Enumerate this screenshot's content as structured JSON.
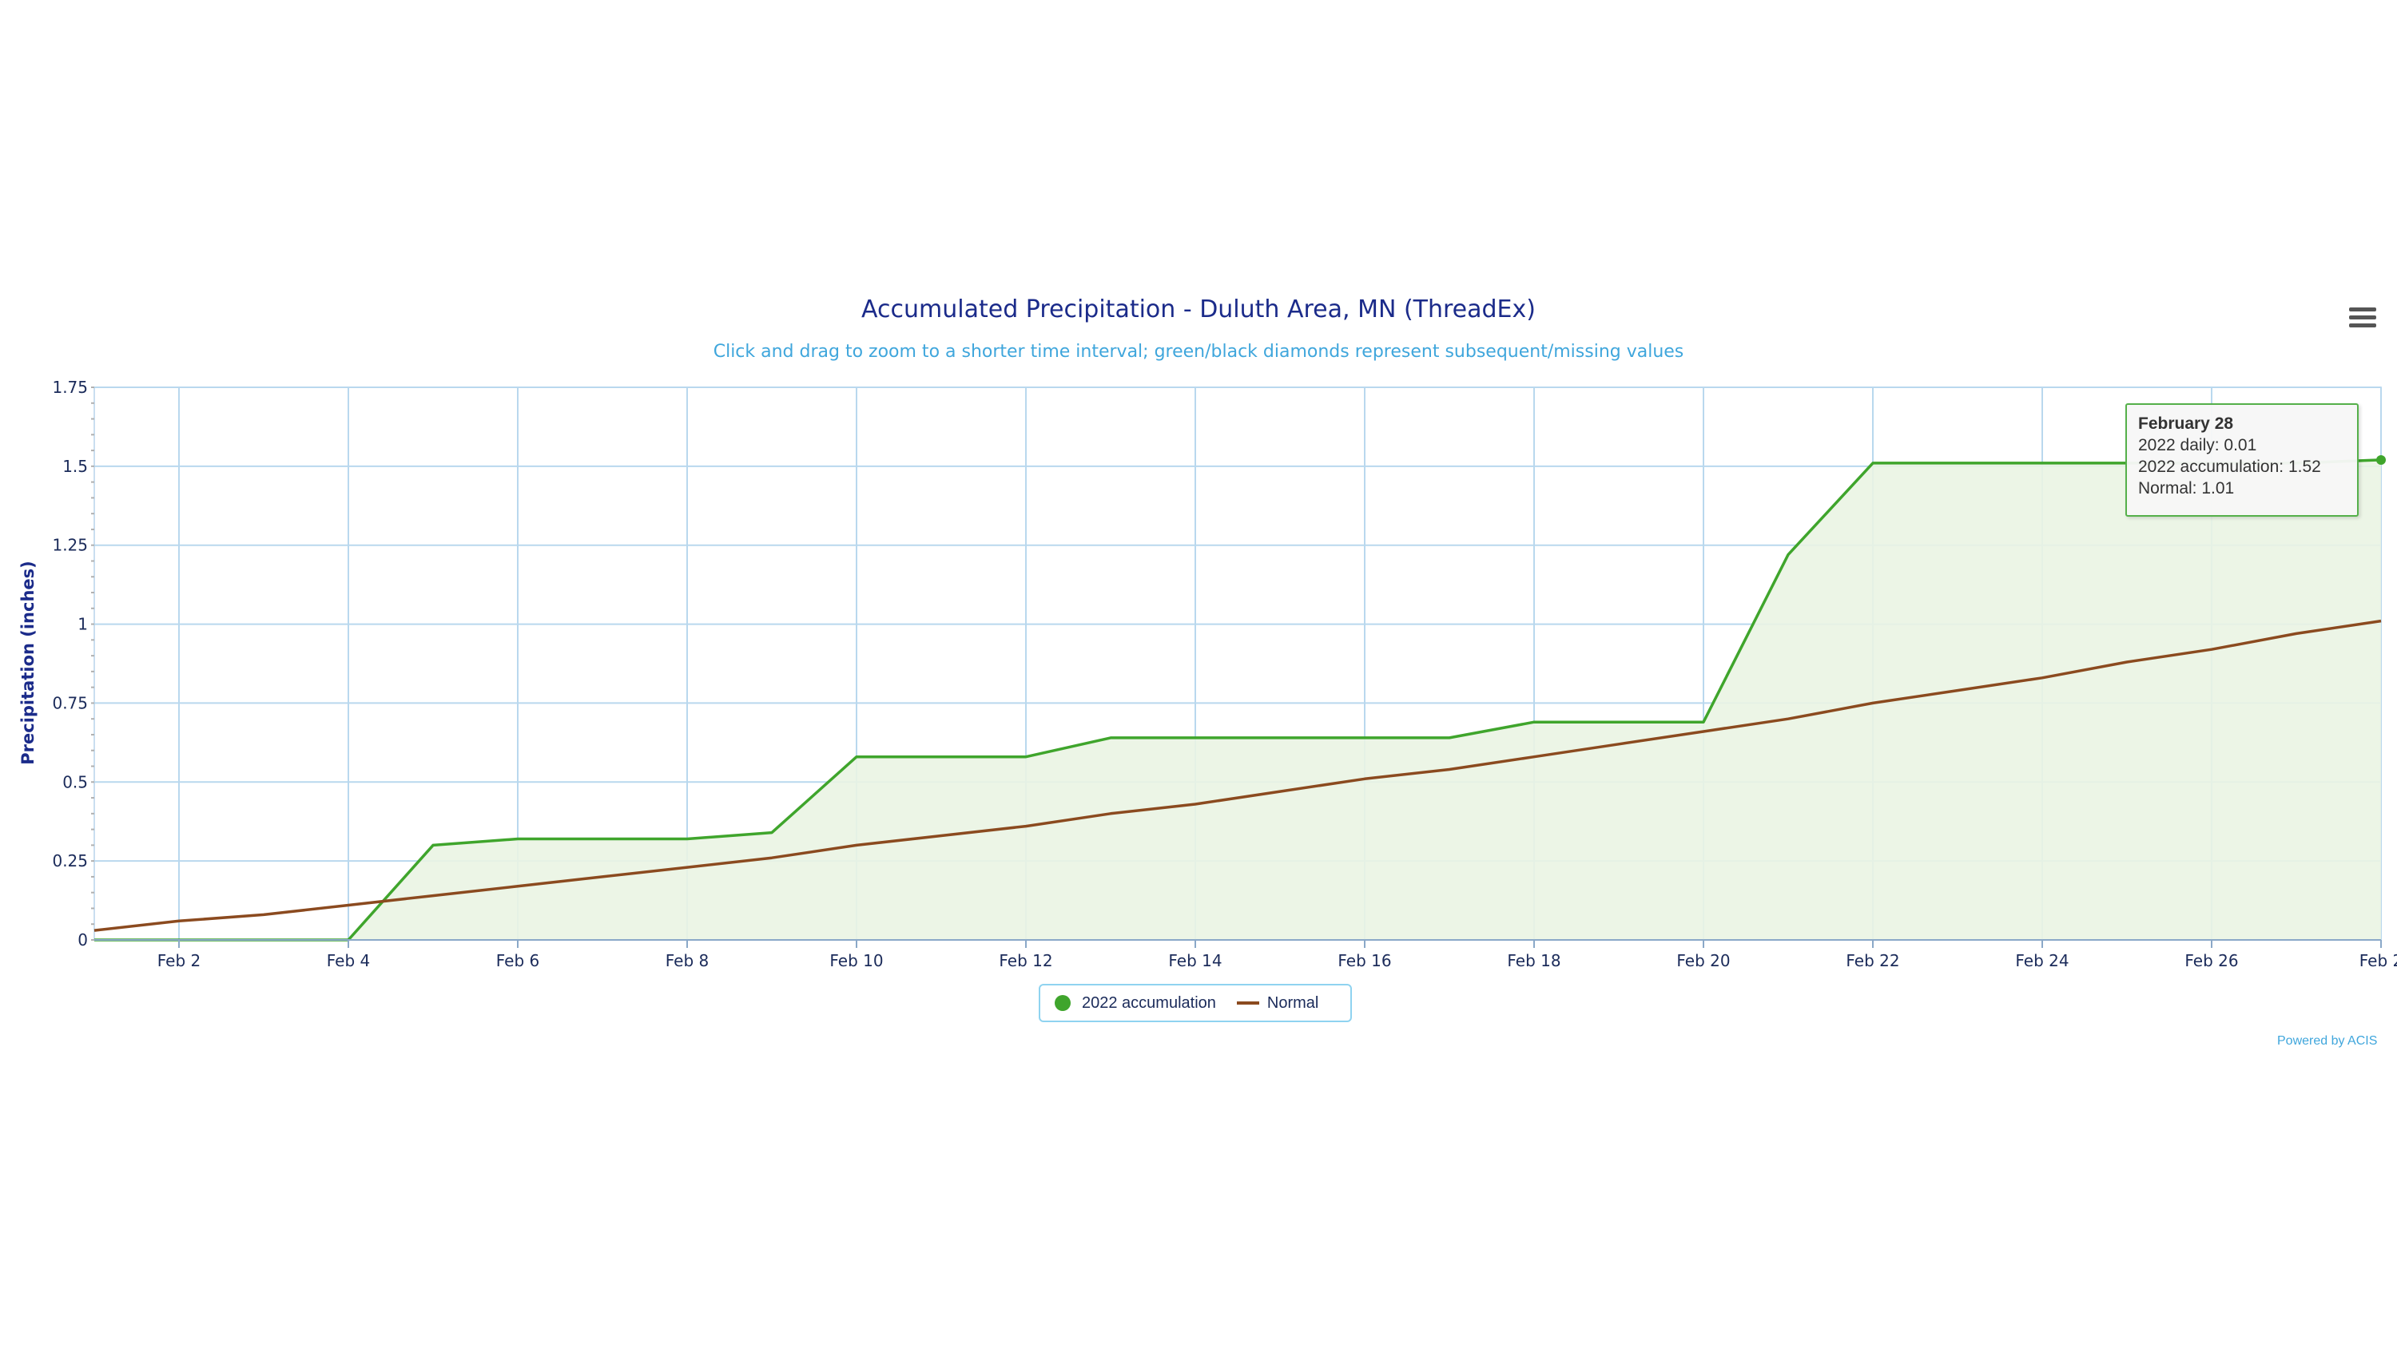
{
  "chart": {
    "title": "Accumulated Precipitation - Duluth Area, MN (ThreadEx)",
    "subtitle": "Click and drag to zoom to a shorter time interval; green/black diamonds represent subsequent/missing values",
    "credits": "Powered by ACIS",
    "menu_icon": "hamburger-menu-icon"
  },
  "legend": {
    "items": [
      {
        "label": "2022 accumulation",
        "color": "#3fa52c",
        "symbol": "circle"
      },
      {
        "label": "Normal",
        "color": "#8b4a1f",
        "symbol": "line"
      }
    ]
  },
  "tooltip": {
    "title": "February 28",
    "line1": "2022 daily: 0.01",
    "line2": "2022 accumulation: 1.52",
    "line3": "Normal: 1.01"
  },
  "chart_data": {
    "type": "area",
    "title": "Accumulated Precipitation - Duluth Area, MN (ThreadEx)",
    "subtitle": "Click and drag to zoom to a shorter time interval; green/black diamonds represent subsequent/missing values",
    "xlabel": "",
    "ylabel": "Precipitation (inches)",
    "ylim": [
      0,
      1.75
    ],
    "yticks": [
      "0",
      "0.25",
      "0.5",
      "0.75",
      "1",
      "1.25",
      "1.5",
      "1.75"
    ],
    "xlim": [
      "Feb 1",
      "Feb 28"
    ],
    "xticks": [
      "Feb 2",
      "Feb 4",
      "Feb 6",
      "Feb 8",
      "Feb 10",
      "Feb 12",
      "Feb 14",
      "Feb 16",
      "Feb 18",
      "Feb 20",
      "Feb 22",
      "Feb 24",
      "Feb 26",
      "Feb 2"
    ],
    "x": [
      "Feb 1",
      "Feb 2",
      "Feb 3",
      "Feb 4",
      "Feb 5",
      "Feb 6",
      "Feb 7",
      "Feb 8",
      "Feb 9",
      "Feb 10",
      "Feb 11",
      "Feb 12",
      "Feb 13",
      "Feb 14",
      "Feb 15",
      "Feb 16",
      "Feb 17",
      "Feb 18",
      "Feb 19",
      "Feb 20",
      "Feb 21",
      "Feb 22",
      "Feb 23",
      "Feb 24",
      "Feb 25",
      "Feb 26",
      "Feb 27",
      "Feb 28"
    ],
    "grid": true,
    "legend_position": "bottom-center",
    "series": [
      {
        "name": "2022 accumulation",
        "color": "#3fa52c",
        "fill": "#eaf4e3",
        "values": [
          0,
          0,
          0,
          0,
          0.3,
          0.32,
          0.32,
          0.32,
          0.34,
          0.58,
          0.58,
          0.58,
          0.64,
          0.64,
          0.64,
          0.64,
          0.64,
          0.69,
          0.69,
          0.69,
          1.22,
          1.51,
          1.51,
          1.51,
          1.51,
          1.51,
          1.51,
          1.52
        ]
      },
      {
        "name": "Normal",
        "color": "#8b4a1f",
        "values": [
          0.03,
          0.06,
          0.08,
          0.11,
          0.14,
          0.17,
          0.2,
          0.23,
          0.26,
          0.3,
          0.33,
          0.36,
          0.4,
          0.43,
          0.47,
          0.51,
          0.54,
          0.58,
          0.62,
          0.66,
          0.7,
          0.75,
          0.79,
          0.83,
          0.88,
          0.92,
          0.97,
          1.01
        ]
      }
    ]
  }
}
